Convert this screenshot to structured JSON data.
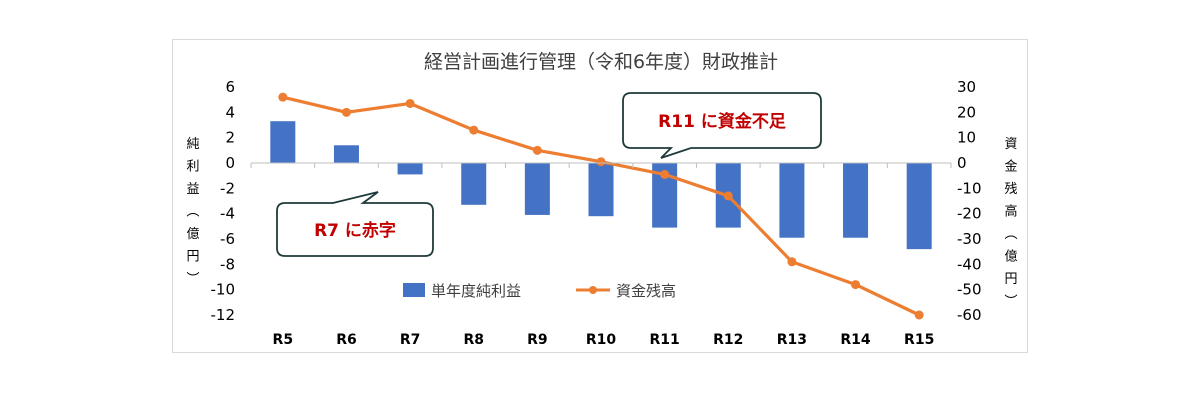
{
  "chart_data": {
    "type": "bar+line",
    "title": "経営計画進行管理（令和6年度）財政推計",
    "categories": [
      "R5",
      "R6",
      "R7",
      "R8",
      "R9",
      "R10",
      "R11",
      "R12",
      "R13",
      "R14",
      "R15"
    ],
    "series": [
      {
        "name": "単年度純利益",
        "type": "bar",
        "axis": "left",
        "color": "#4472c4",
        "values": [
          3.3,
          1.4,
          -0.9,
          -3.3,
          -4.1,
          -4.2,
          -5.1,
          -5.1,
          -5.9,
          -5.9,
          -6.8
        ]
      },
      {
        "name": "資金残高",
        "type": "line",
        "axis": "right",
        "color": "#ed7d31",
        "values": [
          26,
          20,
          23.5,
          13,
          5,
          0.5,
          -4.5,
          -13,
          -39,
          -48,
          -60
        ]
      }
    ],
    "left_axis": {
      "label": "純利益（億円）",
      "ylim": [
        -12,
        6
      ],
      "ticks": [
        6,
        4,
        2,
        0,
        -2,
        -4,
        -6,
        -8,
        -10,
        -12
      ]
    },
    "right_axis": {
      "label": "資金残高（億円）",
      "ylim": [
        -60,
        30
      ],
      "ticks": [
        30,
        20,
        10,
        0,
        -10,
        -20,
        -30,
        -40,
        -50,
        -60
      ]
    },
    "legend": {
      "position": "bottom-center"
    },
    "annotations": [
      {
        "text": "R11 に資金不足",
        "target": "R11"
      },
      {
        "text": "R7 に赤字",
        "target": "R7"
      }
    ],
    "grid": false
  }
}
